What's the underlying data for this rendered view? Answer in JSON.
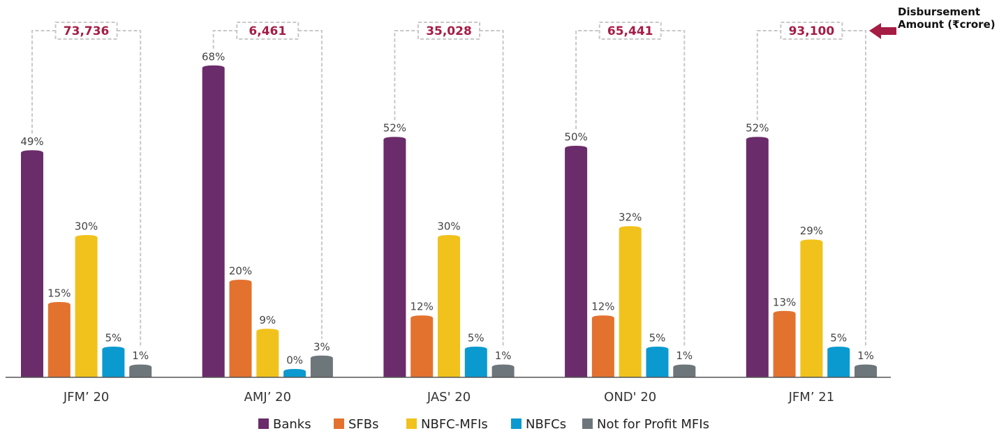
{
  "chart_data": {
    "type": "bar",
    "categories": [
      "JFM’ 20",
      "AMJ’ 20",
      "JAS' 20",
      "OND' 20",
      "JFM’ 21"
    ],
    "series": [
      {
        "name": "Banks",
        "color": "#6a2c6a",
        "values": [
          49,
          68,
          52,
          50,
          52
        ],
        "value_labels": [
          "49%",
          "68%",
          "52%",
          "50%",
          "52%"
        ]
      },
      {
        "name": "SFBs",
        "color": "#e3722f",
        "values": [
          15,
          20,
          12,
          12,
          13
        ],
        "value_labels": [
          "15%",
          "20%",
          "12%",
          "12%",
          "13%"
        ]
      },
      {
        "name": "NBFC-MFIs",
        "color": "#f1c21b",
        "values": [
          30,
          9,
          30,
          32,
          29
        ],
        "value_labels": [
          "30%",
          "9%",
          "30%",
          "32%",
          "29%"
        ]
      },
      {
        "name": "NBFCs",
        "color": "#0b9ad0",
        "values": [
          5,
          0,
          5,
          5,
          5
        ],
        "value_labels": [
          "5%",
          "0%",
          "5%",
          "5%",
          "5%"
        ]
      },
      {
        "name": "Not for Profit MFIs",
        "color": "#6d767b",
        "values": [
          1,
          3,
          1,
          1,
          1
        ],
        "value_labels": [
          "1%",
          "3%",
          "1%",
          "1%",
          "1%"
        ]
      }
    ],
    "disbursement": {
      "values": [
        73736,
        6461,
        35028,
        65441,
        93100
      ],
      "value_labels": [
        "73,736",
        "6,461",
        "35,028",
        "65,441",
        "93,100"
      ]
    },
    "annotation": "Disbursement Amount (₹crore)",
    "annotation_color": "#a51c45"
  }
}
